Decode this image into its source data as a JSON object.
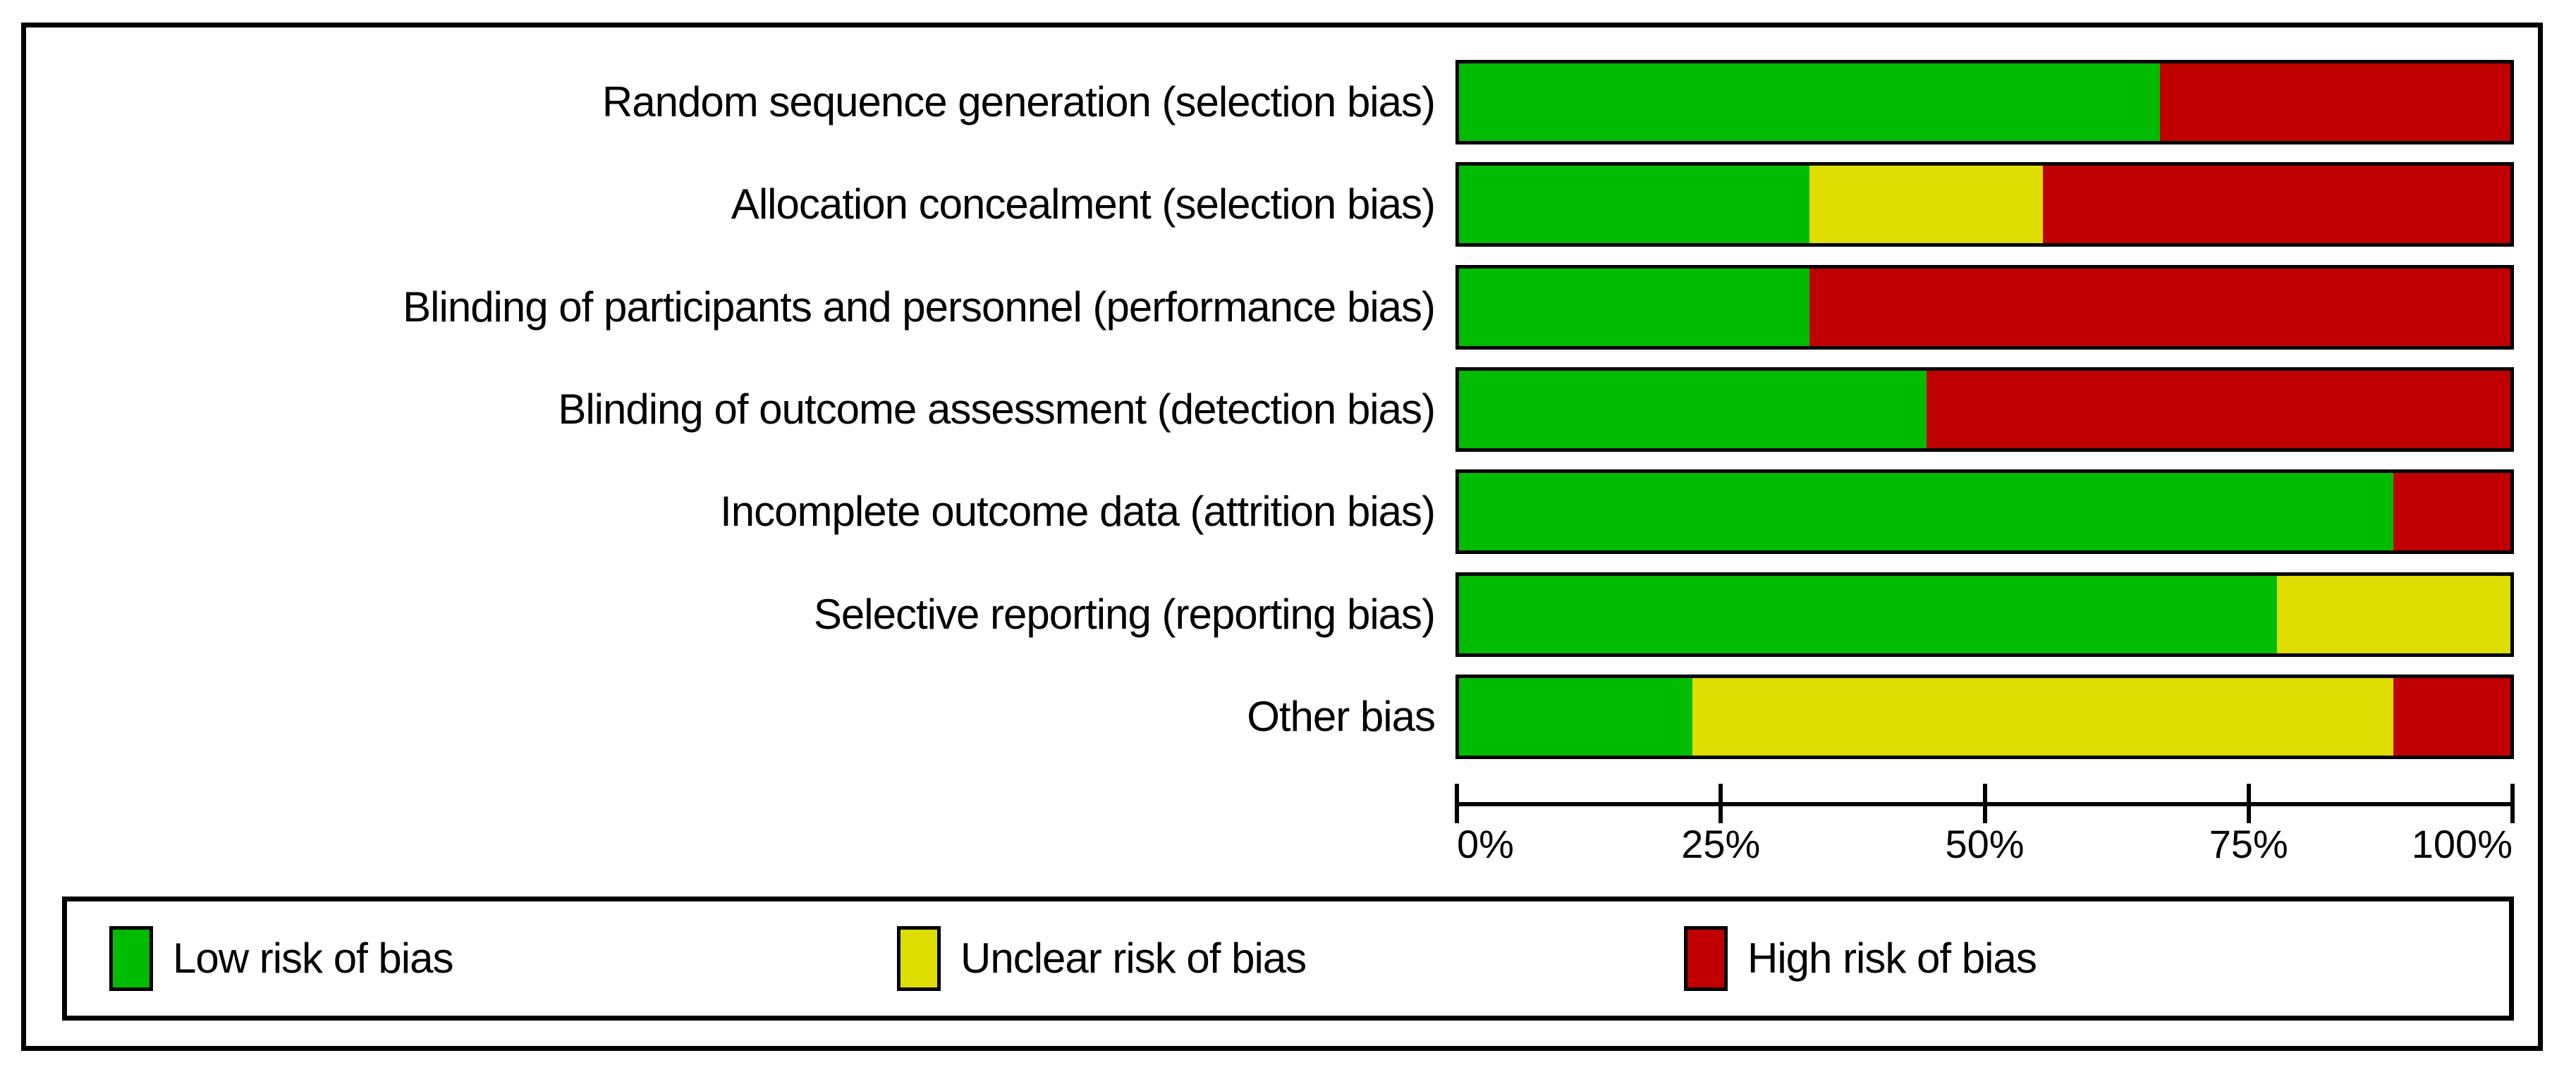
{
  "chart_data": {
    "type": "bar",
    "orientation": "horizontal",
    "stacked": true,
    "title": "",
    "xlabel": "",
    "ylabel": "",
    "categories": [
      "Random sequence generation (selection bias)",
      "Allocation concealment (selection bias)",
      "Blinding of participants and personnel (performance bias)",
      "Blinding of outcome assessment (detection bias)",
      "Incomplete outcome data (attrition bias)",
      "Selective reporting (reporting bias)",
      "Other bias"
    ],
    "series": [
      {
        "name": "Low risk of bias",
        "color": "#00BC00",
        "values": [
          66.67,
          33.33,
          33.33,
          44.44,
          88.89,
          77.78,
          22.22
        ]
      },
      {
        "name": "Unclear risk of bias",
        "color": "#DEDE00",
        "values": [
          0,
          22.22,
          0,
          0,
          0,
          22.22,
          66.67
        ]
      },
      {
        "name": "High risk of bias",
        "color": "#C00000",
        "values": [
          33.33,
          44.44,
          66.67,
          55.56,
          11.11,
          0,
          11.11
        ]
      }
    ],
    "x_axis": {
      "range": [
        0,
        100
      ],
      "tick_labels": [
        "0%",
        "25%",
        "50%",
        "75%",
        "100%"
      ],
      "tick_values": [
        0,
        25,
        50,
        75,
        100
      ]
    },
    "legend": {
      "position": "bottom",
      "entries": [
        {
          "label": "Low risk of bias",
          "color": "#00BC00"
        },
        {
          "label": "Unclear risk of bias",
          "color": "#DEDE00"
        },
        {
          "label": "High risk of bias",
          "color": "#C00000"
        }
      ]
    },
    "grid": false
  },
  "colors": {
    "low_risk": "#00BC00",
    "unclear_risk": "#DEDE00",
    "high_risk": "#C00000",
    "border": "#000000",
    "background": "#FFFFFF"
  }
}
